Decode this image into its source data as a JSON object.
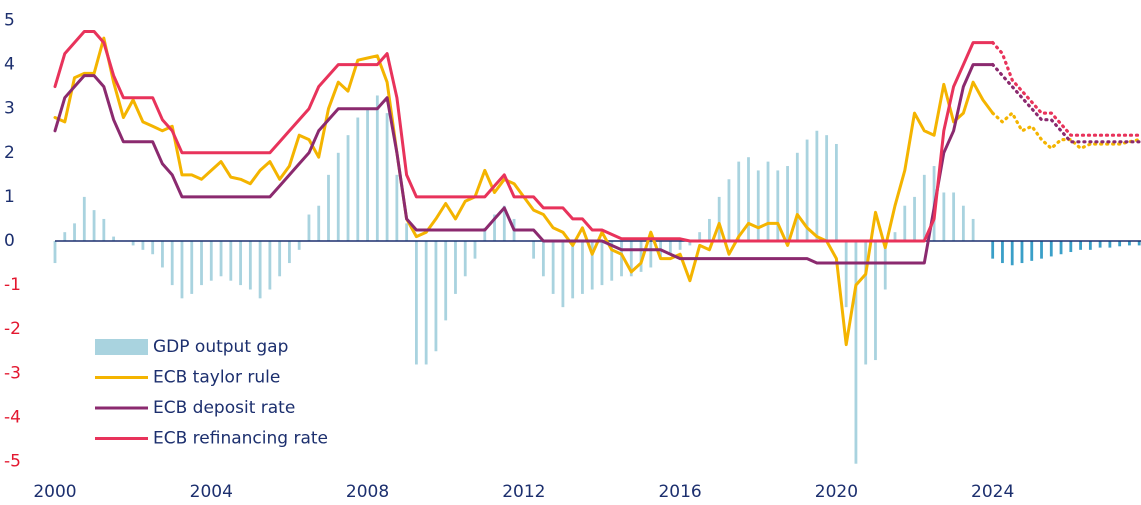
{
  "chart_data": {
    "type": "bar-line",
    "x": [
      2000,
      2000.25,
      2000.5,
      2000.75,
      2001,
      2001.25,
      2001.5,
      2001.75,
      2002,
      2002.25,
      2002.5,
      2002.75,
      2003,
      2003.25,
      2003.5,
      2003.75,
      2004,
      2004.25,
      2004.5,
      2004.75,
      2005,
      2005.25,
      2005.5,
      2005.75,
      2006,
      2006.25,
      2006.5,
      2006.75,
      2007,
      2007.25,
      2007.5,
      2007.75,
      2008,
      2008.25,
      2008.5,
      2008.75,
      2009,
      2009.25,
      2009.5,
      2009.75,
      2010,
      2010.25,
      2010.5,
      2010.75,
      2011,
      2011.25,
      2011.5,
      2011.75,
      2012,
      2012.25,
      2012.5,
      2012.75,
      2013,
      2013.25,
      2013.5,
      2013.75,
      2014,
      2014.25,
      2014.5,
      2014.75,
      2015,
      2015.25,
      2015.5,
      2015.75,
      2016,
      2016.25,
      2016.5,
      2016.75,
      2017,
      2017.25,
      2017.5,
      2017.75,
      2018,
      2018.25,
      2018.5,
      2018.75,
      2019,
      2019.25,
      2019.5,
      2019.75,
      2020,
      2020.25,
      2020.5,
      2020.75,
      2021,
      2021.25,
      2021.5,
      2021.75,
      2022,
      2022.25,
      2022.5,
      2022.75,
      2023,
      2023.25,
      2023.5,
      2023.75,
      2024,
      2024.25,
      2024.5,
      2024.75,
      2025,
      2025.25,
      2025.5,
      2025.75,
      2026,
      2026.25,
      2026.5,
      2026.75,
      2027,
      2027.25,
      2027.5,
      2027.75
    ],
    "forecast_x": 2024,
    "series": [
      {
        "name": "GDP output gap",
        "kind": "bar",
        "color": "#a9d3df",
        "forecast_color": "#3a9fc8",
        "values": [
          -0.5,
          0.2,
          0.4,
          1.0,
          0.7,
          0.5,
          0.1,
          0.0,
          -0.1,
          -0.2,
          -0.3,
          -0.6,
          -1.0,
          -1.3,
          -1.2,
          -1.0,
          -0.9,
          -0.8,
          -0.9,
          -1.0,
          -1.1,
          -1.3,
          -1.1,
          -0.8,
          -0.5,
          -0.2,
          0.6,
          0.8,
          1.5,
          2.0,
          2.4,
          2.8,
          3.0,
          3.3,
          2.9,
          1.5,
          0.4,
          -2.8,
          -2.8,
          -2.5,
          -1.8,
          -1.2,
          -0.8,
          -0.4,
          0.3,
          0.6,
          0.8,
          0.5,
          0.0,
          -0.4,
          -0.8,
          -1.2,
          -1.5,
          -1.3,
          -1.2,
          -1.1,
          -1.0,
          -0.9,
          -0.8,
          -0.8,
          -0.7,
          -0.6,
          -0.4,
          -0.3,
          -0.2,
          -0.1,
          0.2,
          0.5,
          1.0,
          1.4,
          1.8,
          1.9,
          1.6,
          1.8,
          1.6,
          1.7,
          2.0,
          2.3,
          2.5,
          2.4,
          2.2,
          -1.5,
          -5.05,
          -2.8,
          -2.7,
          -1.1,
          0.2,
          0.8,
          1.0,
          1.5,
          1.7,
          1.1,
          1.1,
          0.8,
          0.5,
          0.0,
          -0.4,
          -0.5,
          -0.55,
          -0.5,
          -0.45,
          -0.4,
          -0.35,
          -0.3,
          -0.25,
          -0.2,
          -0.2,
          -0.15,
          -0.15,
          -0.12,
          -0.1,
          -0.1
        ]
      },
      {
        "name": "ECB taylor rule",
        "kind": "line",
        "color": "#f4b400",
        "values": [
          2.8,
          2.7,
          3.7,
          3.8,
          3.8,
          4.6,
          3.6,
          2.8,
          3.2,
          2.7,
          2.6,
          2.5,
          2.6,
          1.5,
          1.5,
          1.4,
          1.6,
          1.8,
          1.45,
          1.4,
          1.3,
          1.6,
          1.8,
          1.4,
          1.7,
          2.4,
          2.3,
          1.9,
          3.0,
          3.6,
          3.4,
          4.1,
          4.15,
          4.2,
          3.6,
          2.0,
          0.5,
          0.1,
          0.2,
          0.5,
          0.85,
          0.5,
          0.9,
          1.0,
          1.6,
          1.1,
          1.4,
          1.3,
          1.0,
          0.7,
          0.6,
          0.3,
          0.2,
          -0.1,
          0.3,
          -0.3,
          0.2,
          -0.2,
          -0.3,
          -0.7,
          -0.5,
          0.2,
          -0.4,
          -0.4,
          -0.3,
          -0.9,
          -0.1,
          -0.2,
          0.4,
          -0.3,
          0.1,
          0.4,
          0.3,
          0.4,
          0.4,
          -0.1,
          0.6,
          0.3,
          0.1,
          0.0,
          -0.4,
          -2.35,
          -1.0,
          -0.75,
          0.65,
          -0.15,
          0.8,
          1.6,
          2.9,
          2.5,
          2.4,
          3.55,
          2.7,
          2.9,
          3.6,
          3.2,
          2.9,
          2.7,
          2.9,
          2.5,
          2.6,
          2.3,
          2.1,
          2.3,
          2.3,
          2.1,
          2.2,
          2.2,
          2.2,
          2.2,
          2.25,
          2.3
        ]
      },
      {
        "name": "ECB deposit rate",
        "kind": "line",
        "color": "#8b2a6f",
        "values": [
          2.5,
          3.25,
          3.5,
          3.75,
          3.75,
          3.5,
          2.75,
          2.25,
          2.25,
          2.25,
          2.25,
          1.75,
          1.5,
          1.0,
          1.0,
          1.0,
          1.0,
          1.0,
          1.0,
          1.0,
          1.0,
          1.0,
          1.0,
          1.25,
          1.5,
          1.75,
          2.0,
          2.5,
          2.75,
          3.0,
          3.0,
          3.0,
          3.0,
          3.0,
          3.25,
          2.0,
          0.5,
          0.25,
          0.25,
          0.25,
          0.25,
          0.25,
          0.25,
          0.25,
          0.25,
          0.5,
          0.75,
          0.25,
          0.25,
          0.25,
          0.0,
          0.0,
          0.0,
          0.0,
          0.0,
          0.0,
          0.0,
          -0.1,
          -0.2,
          -0.2,
          -0.2,
          -0.2,
          -0.2,
          -0.3,
          -0.4,
          -0.4,
          -0.4,
          -0.4,
          -0.4,
          -0.4,
          -0.4,
          -0.4,
          -0.4,
          -0.4,
          -0.4,
          -0.4,
          -0.4,
          -0.4,
          -0.5,
          -0.5,
          -0.5,
          -0.5,
          -0.5,
          -0.5,
          -0.5,
          -0.5,
          -0.5,
          -0.5,
          -0.5,
          -0.5,
          0.75,
          2.0,
          2.5,
          3.5,
          4.0,
          4.0,
          4.0,
          3.75,
          3.5,
          3.25,
          3.0,
          2.75,
          2.75,
          2.5,
          2.25,
          2.25,
          2.25,
          2.25,
          2.25,
          2.25,
          2.25,
          2.25
        ]
      },
      {
        "name": "ECB refinancing rate",
        "kind": "line",
        "color": "#e8335b",
        "values": [
          3.5,
          4.25,
          4.5,
          4.75,
          4.75,
          4.5,
          3.75,
          3.25,
          3.25,
          3.25,
          3.25,
          2.75,
          2.5,
          2.0,
          2.0,
          2.0,
          2.0,
          2.0,
          2.0,
          2.0,
          2.0,
          2.0,
          2.0,
          2.25,
          2.5,
          2.75,
          3.0,
          3.5,
          3.75,
          4.0,
          4.0,
          4.0,
          4.0,
          4.0,
          4.25,
          3.25,
          1.5,
          1.0,
          1.0,
          1.0,
          1.0,
          1.0,
          1.0,
          1.0,
          1.0,
          1.25,
          1.5,
          1.0,
          1.0,
          1.0,
          0.75,
          0.75,
          0.75,
          0.5,
          0.5,
          0.25,
          0.25,
          0.15,
          0.05,
          0.05,
          0.05,
          0.05,
          0.05,
          0.05,
          0.05,
          0.0,
          0.0,
          0.0,
          0.0,
          0.0,
          0.0,
          0.0,
          0.0,
          0.0,
          0.0,
          0.0,
          0.0,
          0.0,
          0.0,
          0.0,
          0.0,
          0.0,
          0.0,
          0.0,
          0.0,
          0.0,
          0.0,
          0.0,
          0.0,
          0.0,
          0.5,
          2.5,
          3.5,
          4.0,
          4.5,
          4.5,
          4.5,
          4.25,
          3.65,
          3.4,
          3.15,
          2.9,
          2.9,
          2.65,
          2.4,
          2.4,
          2.4,
          2.4,
          2.4,
          2.4,
          2.4,
          2.4
        ]
      }
    ],
    "xlim": [
      2000,
      2027.8
    ],
    "xticks": [
      2000,
      2004,
      2008,
      2012,
      2016,
      2020,
      2024
    ],
    "ylim": [
      -5.4,
      5.5
    ],
    "yticks": [
      -5,
      -4,
      -3,
      -2,
      -1,
      0,
      1,
      2,
      3,
      4,
      5
    ],
    "positive_tick_color": "#1c2f6e",
    "negative_tick_color": "#e3172f",
    "zero_line_color": "#1c2f6e"
  }
}
